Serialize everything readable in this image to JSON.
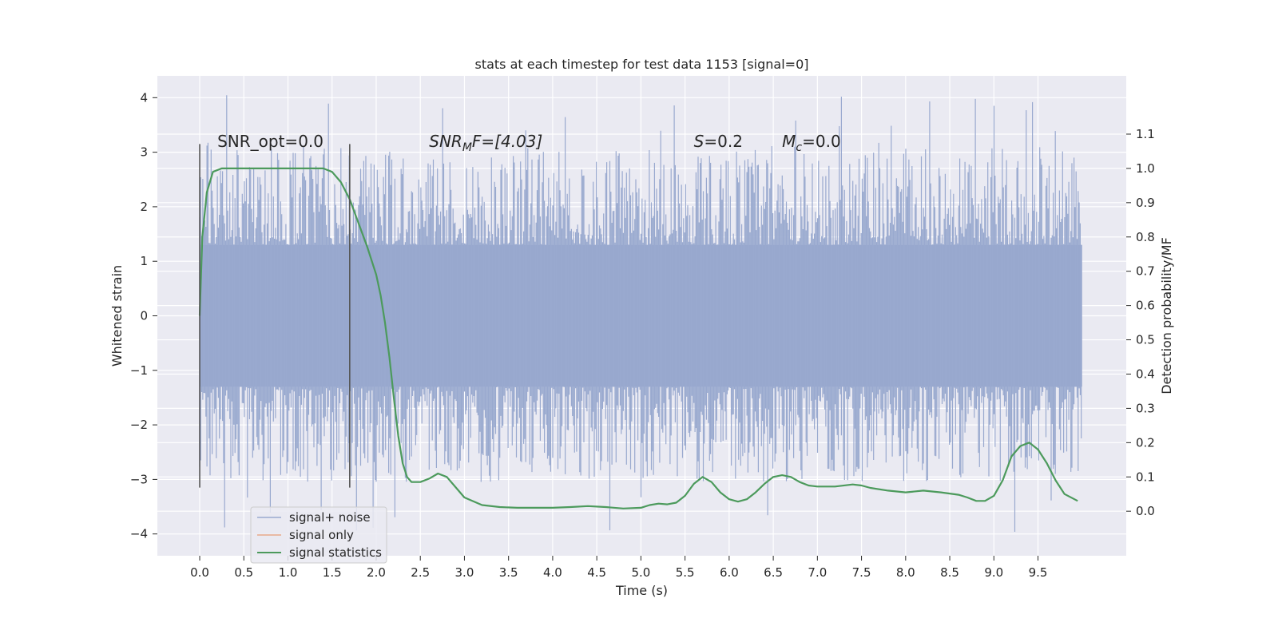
{
  "chart_data": {
    "type": "line",
    "title": "stats at each timestep for test data 1153 [signal=0]",
    "xlabel": "Time (s)",
    "ylabel": "Whitened strain",
    "y2label": "Detection probability/MF",
    "xlim": [
      -0.48,
      10.5
    ],
    "ylim": [
      -4.4,
      4.4
    ],
    "y2lim": [
      -0.13,
      1.27
    ],
    "xticks": [
      0.0,
      0.5,
      1.0,
      1.5,
      2.0,
      2.5,
      3.0,
      3.5,
      4.0,
      4.5,
      5.0,
      5.5,
      6.0,
      6.5,
      7.0,
      7.5,
      8.0,
      8.5,
      9.0,
      9.5
    ],
    "yticks": [
      -4,
      -3,
      -2,
      -1,
      0,
      1,
      2,
      3,
      4
    ],
    "y2ticks": [
      0.0,
      0.1,
      0.2,
      0.3,
      0.4,
      0.5,
      0.6,
      0.7,
      0.8,
      0.9,
      1.0,
      1.1
    ],
    "grid": true,
    "legend_position": "lower-left",
    "annotations": {
      "snr_opt": "SNR_opt=0.0",
      "snr_mf_prefix": "SNR",
      "snr_mf_sub": "M",
      "snr_mf_suffix": "F=[4.03]",
      "s_name": "S",
      "s_value": "=0.2",
      "mc_name": "M",
      "mc_sub": "c",
      "mc_value": "=0.0"
    },
    "vertical_markers_x": [
      0.0,
      1.7
    ],
    "vertical_markers_y": [
      -3.15,
      3.15
    ],
    "series": [
      {
        "name": "signal+ noise",
        "axis": "left",
        "color": "#99a9cf",
        "noise_band": {
          "x_start": 0.0,
          "x_end": 10.0,
          "core": [
            -1.3,
            1.3
          ],
          "spikes_max": 4.05,
          "spikes_min": -4.0
        }
      },
      {
        "name": "signal only",
        "axis": "left",
        "color": "#e8a98a",
        "x": [],
        "y": []
      },
      {
        "name": "signal statistics",
        "axis": "right",
        "color": "#4c9a5c",
        "x": [
          0.0,
          0.03,
          0.08,
          0.15,
          0.25,
          0.4,
          0.6,
          0.8,
          1.0,
          1.2,
          1.4,
          1.5,
          1.6,
          1.7,
          1.8,
          1.9,
          2.0,
          2.05,
          2.1,
          2.15,
          2.2,
          2.25,
          2.3,
          2.35,
          2.4,
          2.5,
          2.6,
          2.7,
          2.8,
          2.9,
          3.0,
          3.2,
          3.4,
          3.6,
          3.8,
          4.0,
          4.2,
          4.4,
          4.6,
          4.8,
          5.0,
          5.1,
          5.2,
          5.3,
          5.4,
          5.5,
          5.6,
          5.7,
          5.8,
          5.9,
          6.0,
          6.1,
          6.2,
          6.3,
          6.4,
          6.5,
          6.6,
          6.7,
          6.8,
          6.9,
          7.0,
          7.2,
          7.4,
          7.5,
          7.6,
          7.8,
          8.0,
          8.2,
          8.4,
          8.6,
          8.7,
          8.8,
          8.9,
          9.0,
          9.1,
          9.2,
          9.3,
          9.4,
          9.5,
          9.6,
          9.7,
          9.8,
          9.95
        ],
        "y": [
          0.57,
          0.8,
          0.93,
          0.99,
          1.0,
          1.0,
          1.0,
          1.0,
          1.0,
          1.0,
          1.0,
          0.99,
          0.96,
          0.91,
          0.84,
          0.77,
          0.69,
          0.63,
          0.55,
          0.45,
          0.33,
          0.22,
          0.14,
          0.1,
          0.085,
          0.085,
          0.095,
          0.11,
          0.1,
          0.07,
          0.04,
          0.018,
          0.012,
          0.01,
          0.01,
          0.01,
          0.012,
          0.015,
          0.012,
          0.008,
          0.01,
          0.018,
          0.022,
          0.02,
          0.025,
          0.045,
          0.08,
          0.1,
          0.085,
          0.055,
          0.035,
          0.028,
          0.035,
          0.055,
          0.08,
          0.1,
          0.105,
          0.1,
          0.085,
          0.075,
          0.072,
          0.072,
          0.078,
          0.075,
          0.068,
          0.06,
          0.055,
          0.06,
          0.055,
          0.048,
          0.04,
          0.03,
          0.03,
          0.045,
          0.09,
          0.16,
          0.19,
          0.2,
          0.18,
          0.14,
          0.09,
          0.05,
          0.03
        ]
      }
    ]
  }
}
